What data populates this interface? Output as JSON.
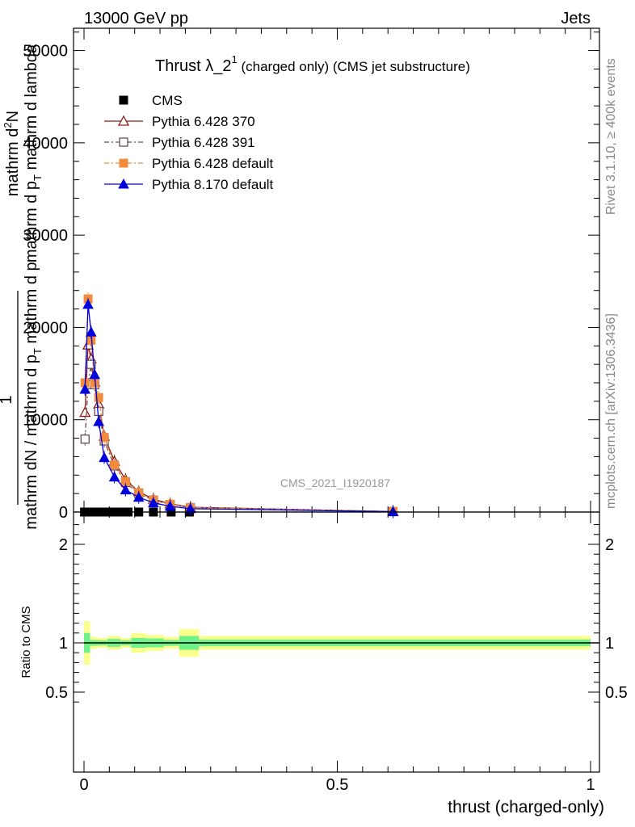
{
  "header": {
    "left": "13000 GeV pp",
    "right": "Jets"
  },
  "side_text": {
    "rivet": "Rivet 3.1.10, ≥ 400k events",
    "mcplots": "mcplots.cern.ch [arXiv:1306.3436]"
  },
  "colors": {
    "cms": "#000000",
    "p6_370": "#8b1a1a",
    "p6_391": "#6b4c55",
    "p6_default": "#f28c3c",
    "p8_default": "#0000dd",
    "band_outer": "#fbff8c",
    "band_inner": "#6ff28a"
  },
  "chart_data": [
    {
      "type": "line",
      "panel": "main",
      "title": {
        "prefix": "Thrust ",
        "lambda": "λ",
        "sub": "_2",
        "sup": "1",
        "suffix": " (charged only) (CMS jet substructure)"
      },
      "ylabel": {
        "numerator": "1",
        "line1": "mathrm d",
        "line1_sup": "2",
        "line1_end": "N",
        "line2": "mathrm d p",
        "line2_sub": "T",
        "line2_end": " mathrm d lambda",
        "denominator": "mathrm dN / mathrm d p",
        "denominator_sub": "T",
        "denominator_end": " mathrm d p"
      },
      "xlim": [
        0,
        1
      ],
      "ylim": [
        0,
        52000
      ],
      "ytick_values": [
        0,
        10000,
        20000,
        30000,
        40000,
        50000
      ],
      "ytick_labels": [
        "0",
        "10000",
        "20000",
        "30000",
        "40000",
        "50000"
      ],
      "watermark": "CMS_2021_I1920187",
      "legend": {
        "placement": "top-left",
        "entries": [
          {
            "label": "CMS",
            "color": "#000000",
            "marker": "square-filled",
            "line": "none"
          },
          {
            "label": "Pythia 6.428 370",
            "color": "#8b1a1a",
            "marker": "triangle-open",
            "line": "solid"
          },
          {
            "label": "Pythia 6.428 391",
            "color": "#6b4c55",
            "marker": "square-open",
            "line": "dashdot"
          },
          {
            "label": "Pythia 6.428 default",
            "color": "#f28c3c",
            "marker": "square-filled",
            "line": "dashdot"
          },
          {
            "label": "Pythia 8.170 default",
            "color": "#0000dd",
            "marker": "triangle-filled",
            "line": "solid"
          }
        ]
      },
      "series": [
        {
          "name": "CMS",
          "x": [
            0.001,
            0.006,
            0.012,
            0.018,
            0.026,
            0.034,
            0.043,
            0.055,
            0.07,
            0.087,
            0.108,
            0.137,
            0.172,
            0.208
          ],
          "y": [
            0,
            0,
            0,
            0,
            0,
            0,
            0,
            0,
            0,
            0,
            0,
            0,
            0,
            0
          ]
        },
        {
          "name": "Pythia 6.428 370",
          "x": [
            0.002,
            0.008,
            0.014,
            0.021,
            0.029,
            0.04,
            0.06,
            0.082,
            0.108,
            0.137,
            0.17,
            0.21,
            0.61
          ],
          "y": [
            10800,
            18100,
            16600,
            14100,
            11700,
            8200,
            5500,
            3500,
            2200,
            1400,
            900,
            520,
            50
          ]
        },
        {
          "name": "Pythia 6.428 391",
          "x": [
            0.002,
            0.008,
            0.014,
            0.021,
            0.029,
            0.04,
            0.06,
            0.082,
            0.108,
            0.137,
            0.17,
            0.21,
            0.61
          ],
          "y": [
            7900,
            13800,
            16000,
            13800,
            10900,
            7700,
            5000,
            3200,
            2000,
            1300,
            820,
            480,
            50
          ]
        },
        {
          "name": "Pythia 6.428 default",
          "x": [
            0.002,
            0.008,
            0.014,
            0.021,
            0.029,
            0.04,
            0.06,
            0.082,
            0.108,
            0.137,
            0.17,
            0.21,
            0.61
          ],
          "y": [
            14000,
            23100,
            18600,
            14000,
            12400,
            8100,
            5100,
            3300,
            2100,
            1300,
            830,
            480,
            60
          ]
        },
        {
          "name": "Pythia 8.170 default",
          "x": [
            0.002,
            0.008,
            0.014,
            0.021,
            0.029,
            0.04,
            0.06,
            0.082,
            0.108,
            0.137,
            0.17,
            0.21,
            0.61
          ],
          "y": [
            13300,
            22500,
            19500,
            14900,
            9800,
            5900,
            3800,
            2400,
            1600,
            1000,
            620,
            360,
            40
          ]
        }
      ]
    },
    {
      "type": "area",
      "panel": "ratio",
      "ylabel": "Ratio to CMS",
      "xlabel": "thrust (charged-only)",
      "xlim": [
        0,
        1
      ],
      "ylim": [
        0.3,
        2.3
      ],
      "ytick_values": [
        0.5,
        1,
        2
      ],
      "ytick_labels": [
        "0.5",
        "1",
        "2"
      ],
      "xtick_values": [
        0,
        0.5,
        1
      ],
      "xtick_labels": [
        "0",
        "0.5",
        "1"
      ],
      "reference_line": 1,
      "bands": [
        {
          "x0": 0.0,
          "x1": 0.012,
          "outer": 0.22,
          "inner": 0.1
        },
        {
          "x0": 0.012,
          "x1": 0.027,
          "outer": 0.06,
          "inner": 0.03
        },
        {
          "x0": 0.027,
          "x1": 0.046,
          "outer": 0.05,
          "inner": 0.025
        },
        {
          "x0": 0.046,
          "x1": 0.072,
          "outer": 0.07,
          "inner": 0.04
        },
        {
          "x0": 0.072,
          "x1": 0.093,
          "outer": 0.05,
          "inner": 0.025
        },
        {
          "x0": 0.093,
          "x1": 0.122,
          "outer": 0.1,
          "inner": 0.05
        },
        {
          "x0": 0.122,
          "x1": 0.157,
          "outer": 0.08,
          "inner": 0.045
        },
        {
          "x0": 0.157,
          "x1": 0.188,
          "outer": 0.06,
          "inner": 0.03
        },
        {
          "x0": 0.188,
          "x1": 0.227,
          "outer": 0.14,
          "inner": 0.07
        },
        {
          "x0": 0.227,
          "x1": 1.0,
          "outer": 0.07,
          "inner": 0.035
        }
      ]
    }
  ]
}
